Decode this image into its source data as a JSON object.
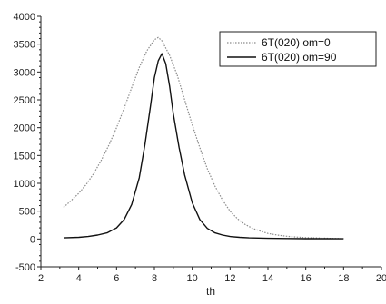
{
  "chart_data": {
    "type": "line",
    "title": "",
    "xlabel": "th",
    "ylabel": "",
    "xlim": [
      2,
      20
    ],
    "ylim": [
      -500,
      4000
    ],
    "x_ticks": [
      2,
      4,
      6,
      8,
      10,
      12,
      14,
      16,
      18,
      20
    ],
    "x_tick_labels": [
      "2",
      "4",
      "6",
      "8",
      "10",
      "12",
      "14",
      "16",
      "18",
      "20"
    ],
    "y_ticks": [
      -500,
      0,
      500,
      1000,
      1500,
      2000,
      2500,
      3000,
      3500,
      4000
    ],
    "y_tick_labels": [
      "-500",
      "0",
      "500",
      "1000",
      "1500",
      "2000",
      "2500",
      "3000",
      "3500",
      "4000"
    ],
    "grid": false,
    "legend_position": "top-right",
    "series": [
      {
        "name": "6T(020) om=0",
        "style": "dotted",
        "color": "#8a8a8a",
        "x": [
          3.2,
          3.6,
          4.0,
          4.4,
          4.8,
          5.2,
          5.6,
          6.0,
          6.4,
          6.8,
          7.2,
          7.6,
          8.0,
          8.2,
          8.4,
          8.8,
          9.2,
          9.6,
          10.0,
          10.4,
          10.8,
          11.2,
          11.6,
          12.0,
          12.4,
          12.8,
          13.2,
          13.6,
          14.0,
          14.5,
          15.0,
          15.5,
          16.0,
          16.5,
          17.0,
          17.5,
          18.0
        ],
        "y": [
          570,
          690,
          820,
          980,
          1180,
          1420,
          1690,
          2000,
          2350,
          2720,
          3080,
          3380,
          3580,
          3620,
          3560,
          3300,
          2950,
          2500,
          2050,
          1640,
          1260,
          950,
          700,
          500,
          360,
          260,
          190,
          140,
          100,
          70,
          50,
          35,
          25,
          20,
          15,
          10,
          8
        ]
      },
      {
        "name": "6T(020) om=90",
        "style": "solid",
        "color": "#111111",
        "x": [
          3.2,
          4.0,
          4.5,
          5.0,
          5.5,
          6.0,
          6.4,
          6.8,
          7.2,
          7.5,
          7.8,
          8.0,
          8.2,
          8.4,
          8.6,
          8.8,
          9.0,
          9.3,
          9.6,
          10.0,
          10.4,
          10.8,
          11.2,
          11.6,
          12.0,
          12.5,
          13.0,
          14.0,
          15.0,
          16.0,
          17.0,
          18.0
        ],
        "y": [
          20,
          30,
          45,
          70,
          110,
          200,
          350,
          620,
          1100,
          1700,
          2400,
          2900,
          3200,
          3330,
          3150,
          2750,
          2250,
          1650,
          1150,
          650,
          350,
          190,
          110,
          70,
          45,
          30,
          20,
          12,
          8,
          6,
          5,
          4
        ]
      }
    ]
  }
}
